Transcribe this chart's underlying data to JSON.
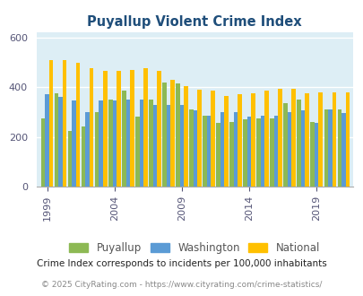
{
  "title": "Puyallup Violent Crime Index",
  "years": [
    1999,
    2000,
    2001,
    2002,
    2003,
    2004,
    2005,
    2006,
    2007,
    2008,
    2009,
    2010,
    2011,
    2012,
    2013,
    2014,
    2015,
    2016,
    2017,
    2018,
    2019,
    2020,
    2021
  ],
  "puyallup": [
    275,
    375,
    225,
    240,
    300,
    350,
    385,
    280,
    350,
    420,
    415,
    310,
    285,
    255,
    260,
    270,
    275,
    275,
    335,
    350,
    260,
    310,
    310
  ],
  "washington": [
    370,
    360,
    345,
    300,
    345,
    345,
    350,
    350,
    330,
    330,
    330,
    305,
    285,
    300,
    300,
    280,
    285,
    285,
    300,
    305,
    255,
    310,
    295
  ],
  "national": [
    510,
    510,
    500,
    475,
    465,
    465,
    470,
    475,
    465,
    430,
    405,
    390,
    385,
    365,
    370,
    375,
    385,
    395,
    395,
    375,
    380,
    380,
    380
  ],
  "colors": {
    "puyallup": "#8db954",
    "washington": "#5b9bd5",
    "national": "#ffc000"
  },
  "background_color": "#ddeef5",
  "ylim": [
    0,
    620
  ],
  "yticks": [
    0,
    200,
    400,
    600
  ],
  "xtick_labels": [
    "1999",
    "2004",
    "2009",
    "2014",
    "2019"
  ],
  "xtick_positions": [
    1999,
    2004,
    2009,
    2014,
    2019
  ],
  "legend_labels": [
    "Puyallup",
    "Washington",
    "National"
  ],
  "footnote1": "Crime Index corresponds to incidents per 100,000 inhabitants",
  "footnote2": "© 2025 CityRating.com - https://www.cityrating.com/crime-statistics/",
  "title_color": "#1f4e7a",
  "footnote1_color": "#222222",
  "footnote2_color": "#888888",
  "legend_text_color": "#555555"
}
